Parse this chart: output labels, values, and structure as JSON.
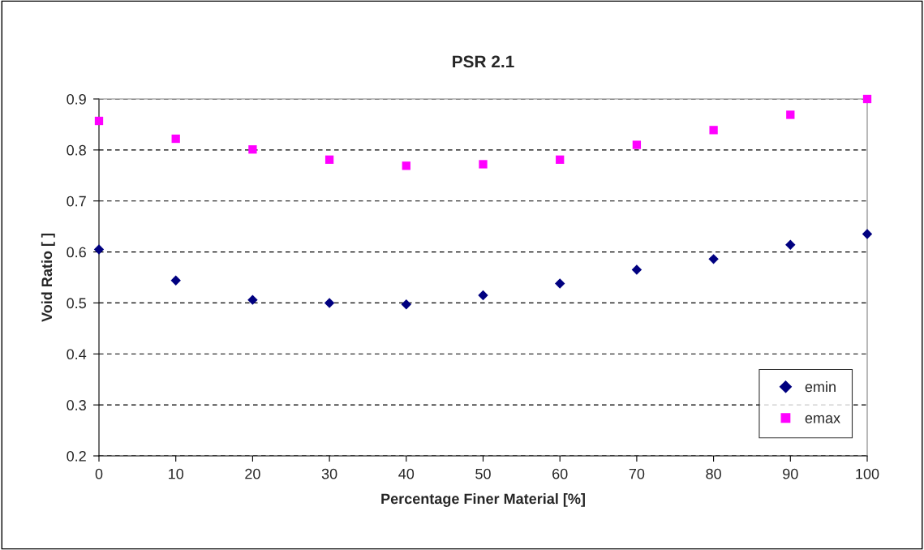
{
  "chart_data": {
    "type": "scatter",
    "title": "PSR 2.1",
    "xlabel": "Percentage Finer Material [%]",
    "ylabel": "Void Ratio [ ]",
    "x": [
      0,
      10,
      20,
      30,
      40,
      50,
      60,
      70,
      80,
      90,
      100
    ],
    "series": [
      {
        "name": "emin",
        "color": "#000080",
        "marker": "diamond",
        "values": [
          0.605,
          0.544,
          0.506,
          0.5,
          0.497,
          0.515,
          0.538,
          0.565,
          0.586,
          0.614,
          0.635
        ]
      },
      {
        "name": "emax",
        "color": "#ff00ff",
        "marker": "square",
        "values": [
          0.857,
          0.822,
          0.801,
          0.781,
          0.769,
          0.772,
          0.781,
          0.81,
          0.839,
          0.869,
          0.9
        ]
      }
    ],
    "xlim": [
      0,
      100
    ],
    "xticks": [
      0,
      10,
      20,
      30,
      40,
      50,
      60,
      70,
      80,
      90,
      100
    ],
    "ylim": [
      0.2,
      0.9
    ],
    "yticks": [
      0.2,
      0.3,
      0.4,
      0.5,
      0.6,
      0.7,
      0.8,
      0.9
    ],
    "grid": "y",
    "legend": "bottom right"
  }
}
